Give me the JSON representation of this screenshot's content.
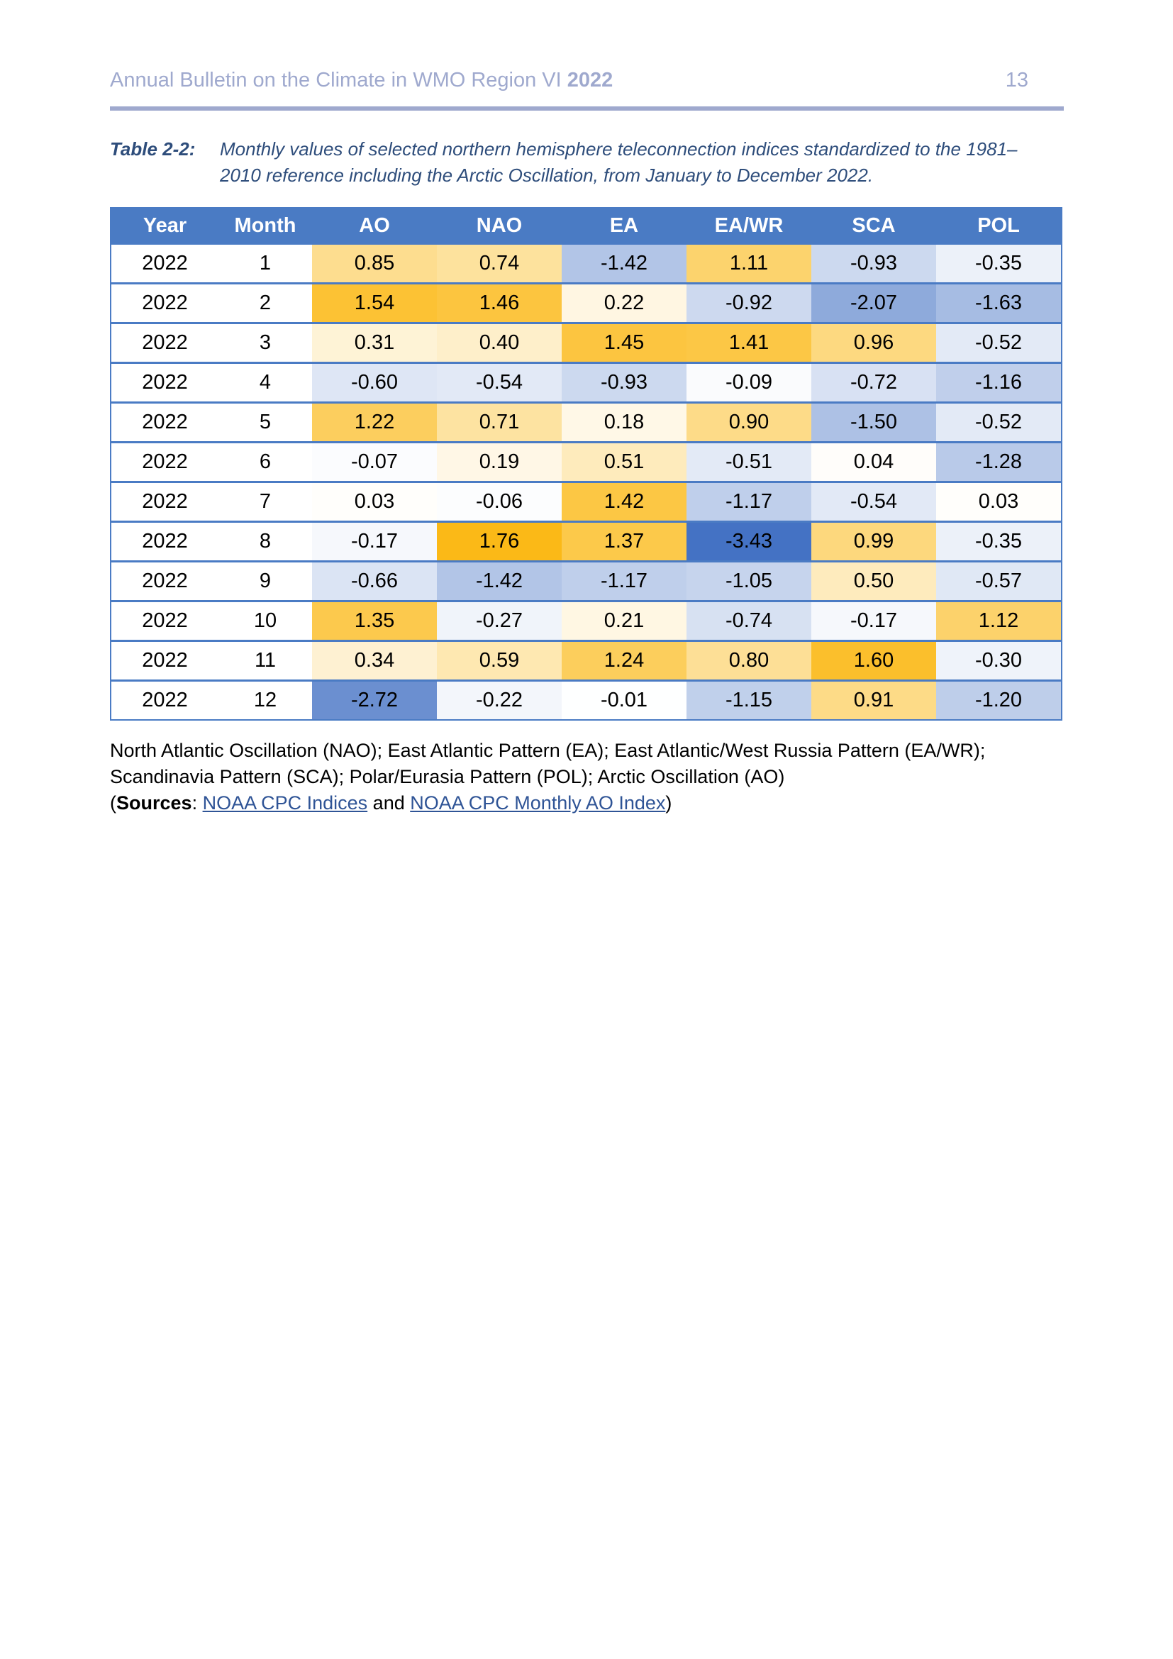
{
  "header": {
    "title": "Annual Bulletin on the Climate in WMO Region VI",
    "title_year_bold": "2022",
    "page_number": "13"
  },
  "caption": {
    "label": "Table 2-2:",
    "text": "Monthly values of selected northern hemisphere teleconnection indices standardized to the 1981–2010 reference including the Arctic Oscillation, from January to December 2022."
  },
  "table": {
    "columns": [
      "Year",
      "Month",
      "AO",
      "NAO",
      "EA",
      "EA/WR",
      "SCA",
      "POL"
    ],
    "rows": [
      {
        "year": "2022",
        "month": "1",
        "values": [
          "0.85",
          "0.74",
          "-1.42",
          "1.11",
          "-0.93",
          "-0.35"
        ]
      },
      {
        "year": "2022",
        "month": "2",
        "values": [
          "1.54",
          "1.46",
          "0.22",
          "-0.92",
          "-2.07",
          "-1.63"
        ]
      },
      {
        "year": "2022",
        "month": "3",
        "values": [
          "0.31",
          "0.40",
          "1.45",
          "1.41",
          "0.96",
          "-0.52"
        ]
      },
      {
        "year": "2022",
        "month": "4",
        "values": [
          "-0.60",
          "-0.54",
          "-0.93",
          "-0.09",
          "-0.72",
          "-1.16"
        ]
      },
      {
        "year": "2022",
        "month": "5",
        "values": [
          "1.22",
          "0.71",
          "0.18",
          "0.90",
          "-1.50",
          "-0.52"
        ]
      },
      {
        "year": "2022",
        "month": "6",
        "values": [
          "-0.07",
          "0.19",
          "0.51",
          "-0.51",
          "0.04",
          "-1.28"
        ]
      },
      {
        "year": "2022",
        "month": "7",
        "values": [
          "0.03",
          "-0.06",
          "1.42",
          "-1.17",
          "-0.54",
          "0.03"
        ]
      },
      {
        "year": "2022",
        "month": "8",
        "values": [
          "-0.17",
          "1.76",
          "1.37",
          "-3.43",
          "0.99",
          "-0.35"
        ]
      },
      {
        "year": "2022",
        "month": "9",
        "values": [
          "-0.66",
          "-1.42",
          "-1.17",
          "-1.05",
          "0.50",
          "-0.57"
        ]
      },
      {
        "year": "2022",
        "month": "10",
        "values": [
          "1.35",
          "-0.27",
          "0.21",
          "-0.74",
          "-0.17",
          "1.12"
        ]
      },
      {
        "year": "2022",
        "month": "11",
        "values": [
          "0.34",
          "0.59",
          "1.24",
          "0.80",
          "1.60",
          "-0.30"
        ]
      },
      {
        "year": "2022",
        "month": "12",
        "values": [
          "-2.72",
          "-0.22",
          "-0.01",
          "-1.15",
          "0.91",
          "-1.20"
        ]
      }
    ],
    "colors": {
      "header_bg": "#4A7BC4",
      "border": "#4A7BC4",
      "scale_negative_max": "#4472C4",
      "scale_positive_max": "#FBB917",
      "scale_mid": "#FFFFFF"
    }
  },
  "footnote": {
    "line1": "North Atlantic Oscillation (NAO); East Atlantic Pattern (EA); East Atlantic/West Russia Pattern (EA/WR);",
    "line2": "Scandinavia Pattern (SCA); Polar/Eurasia Pattern (POL); Arctic Oscillation (AO)",
    "sources": {
      "open": "(",
      "label": "Sources",
      "separator": ": ",
      "link1": "NOAA CPC Indices",
      "conjunction": " and ",
      "link2": "NOAA CPC Monthly AO Index",
      "close": ")"
    }
  },
  "theme": {
    "page_header_color": "#9FA9CE",
    "caption_color": "#2E4D7B",
    "link_color": "#2F5496"
  }
}
